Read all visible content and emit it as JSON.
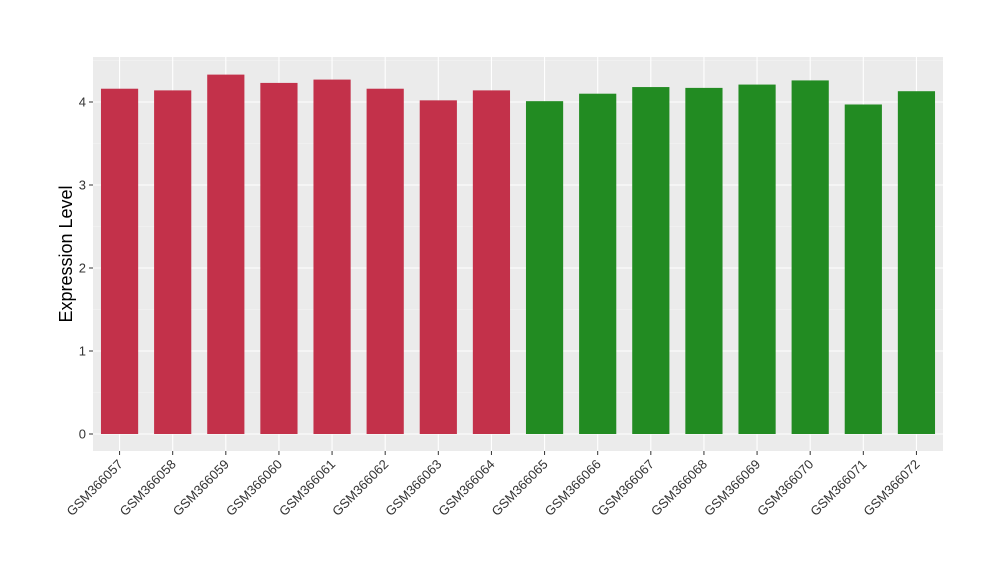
{
  "chart_data": {
    "type": "bar",
    "title": "",
    "xlabel": "",
    "ylabel": "Expression Level",
    "ylim": [
      0,
      4.55
    ],
    "yticks": [
      0,
      1,
      2,
      3,
      4
    ],
    "grid": true,
    "background": "#ebebeb",
    "categories": [
      "GSM366057",
      "GSM366058",
      "GSM366059",
      "GSM366060",
      "GSM366061",
      "GSM366062",
      "GSM366063",
      "GSM366064",
      "GSM366065",
      "GSM366066",
      "GSM366067",
      "GSM366068",
      "GSM366069",
      "GSM366070",
      "GSM366071",
      "GSM366072"
    ],
    "values": [
      4.16,
      4.14,
      4.33,
      4.23,
      4.27,
      4.16,
      4.02,
      4.14,
      4.01,
      4.1,
      4.18,
      4.17,
      4.21,
      4.26,
      3.97,
      4.13
    ],
    "colors": [
      "#c3314a",
      "#c3314a",
      "#c3314a",
      "#c3314a",
      "#c3314a",
      "#c3314a",
      "#c3314a",
      "#c3314a",
      "#228b22",
      "#228b22",
      "#228b22",
      "#228b22",
      "#228b22",
      "#228b22",
      "#228b22",
      "#228b22"
    ]
  }
}
